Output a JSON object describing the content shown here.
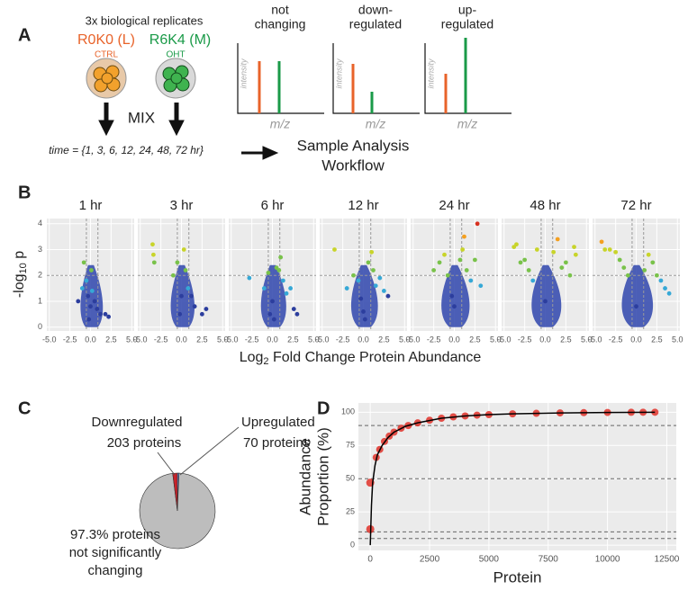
{
  "panel_labels": [
    "A",
    "B",
    "C",
    "D"
  ],
  "panel_a": {
    "replicates": "3x biological replicates",
    "light_label": "R0K0 (L)",
    "light_condition": "CTRL",
    "medium_label": "R6K4 (M)",
    "medium_condition": "OHT",
    "mix": "MIX",
    "time": "time = {1, 3, 6, 12, 24, 48, 72 hr}",
    "workflow": [
      "Sample Analysis",
      "Workflow"
    ],
    "spectra": [
      {
        "title": [
          "not",
          "changing"
        ],
        "y_label": "intensity",
        "x_label": "m/z"
      },
      {
        "title": [
          "down-",
          "regulated"
        ],
        "y_label": "intensity",
        "x_label": "m/z"
      },
      {
        "title": [
          "up-",
          "regulated"
        ],
        "y_label": "intensity",
        "x_label": "m/z"
      }
    ]
  },
  "panel_b": {
    "y_label": [
      "-log",
      "10",
      " p"
    ],
    "x_label": [
      "Log",
      "2",
      " Fold Change Protein Abundance"
    ]
  },
  "chart_data": [
    {
      "type": "scatter",
      "title": "1 hr",
      "x": [
        -1.5,
        -1,
        -0.8,
        -0.5,
        -0.3,
        0,
        0.2,
        0.5,
        0.8,
        1.2,
        1.8,
        2.2,
        -0.2,
        0.1
      ],
      "values": [
        1,
        1.5,
        2.5,
        1.8,
        1.2,
        0.8,
        1.4,
        1,
        0.7,
        0.5,
        0.5,
        0.4,
        0.3,
        2.2
      ],
      "ref_y": 2,
      "ref_x": [
        -0.5,
        0.9
      ],
      "xlim": [
        -5.3,
        5.3
      ],
      "ylim": [
        -0.15,
        4.2
      ],
      "xticks": [
        {
          "value": -5,
          "label": "-5.0"
        },
        {
          "value": -2.5,
          "label": "-2.5"
        },
        {
          "value": 0,
          "label": "0.0"
        },
        {
          "value": 2.5,
          "label": "2.5"
        },
        {
          "value": 5,
          "label": "5.0"
        }
      ],
      "yticks": [
        0,
        1,
        2,
        3,
        4
      ],
      "grid": true
    },
    {
      "type": "scatter",
      "title": "3 hr",
      "x": [
        -3.5,
        -3.4,
        -3.3,
        -1,
        -0.5,
        0,
        0.3,
        0.8,
        1.2,
        1.6,
        2.5,
        3,
        -0.2,
        0.5
      ],
      "values": [
        3.2,
        2.8,
        2.5,
        2,
        2.5,
        1.2,
        3,
        1.5,
        1.2,
        0.8,
        0.5,
        0.7,
        0.5,
        2.2
      ],
      "ref_y": 2,
      "ref_x": [
        -0.5,
        0.9
      ],
      "xlim": [
        -5.3,
        5.3
      ],
      "ylim": [
        -0.15,
        4.2
      ],
      "xticks": [
        {
          "value": -5,
          "label": "-5.0"
        },
        {
          "value": -2.5,
          "label": "-2.5"
        },
        {
          "value": 0,
          "label": "0.0"
        },
        {
          "value": 2.5,
          "label": "2.5"
        },
        {
          "value": 5,
          "label": "5.0"
        }
      ],
      "yticks": [
        0,
        1,
        2,
        3,
        4
      ],
      "grid": true
    },
    {
      "type": "scatter",
      "title": "6 hr",
      "x": [
        -2.8,
        -1,
        -0.5,
        0,
        0.5,
        1,
        1.3,
        1.7,
        2.2,
        2.6,
        3,
        0.2,
        -0.3,
        0.8
      ],
      "values": [
        1.9,
        1.5,
        2.1,
        1,
        2.3,
        2.7,
        1.8,
        1.3,
        1.5,
        0.7,
        0.5,
        0.3,
        0.5,
        2.2
      ],
      "ref_y": 2,
      "ref_x": [
        -0.5,
        0.9
      ],
      "xlim": [
        -5.3,
        5.3
      ],
      "ylim": [
        -0.15,
        4.2
      ],
      "xticks": [
        {
          "value": -5,
          "label": "-5.0"
        },
        {
          "value": -2.5,
          "label": "-2.5"
        },
        {
          "value": 0,
          "label": "0.0"
        },
        {
          "value": 2.5,
          "label": "2.5"
        },
        {
          "value": 5,
          "label": "5.0"
        }
      ],
      "yticks": [
        0,
        1,
        2,
        3,
        4
      ],
      "grid": true
    },
    {
      "type": "scatter",
      "title": "12 hr",
      "x": [
        -3.5,
        -1.2,
        -0.6,
        0,
        0.6,
        1,
        1.5,
        2,
        2.5,
        3,
        1.2,
        0.2,
        -0.3,
        -2
      ],
      "values": [
        3,
        2,
        1.8,
        0.6,
        2.5,
        2.9,
        1.6,
        1.9,
        1.4,
        1.2,
        2.2,
        0.3,
        1.1,
        1.5
      ],
      "ref_y": 2,
      "ref_x": [
        -0.5,
        0.9
      ],
      "xlim": [
        -5.3,
        5.3
      ],
      "ylim": [
        -0.15,
        4.2
      ],
      "xticks": [
        {
          "value": -5,
          "label": "-5.0"
        },
        {
          "value": -2.5,
          "label": "-2.5"
        },
        {
          "value": 0,
          "label": "0.0"
        },
        {
          "value": 2.5,
          "label": "2.5"
        },
        {
          "value": 5,
          "label": "5.0"
        }
      ],
      "yticks": [
        0,
        1,
        2,
        3,
        4
      ],
      "grid": true
    },
    {
      "type": "scatter",
      "title": "24 hr",
      "x": [
        -2.5,
        -1.8,
        -1.2,
        -0.8,
        0,
        0.7,
        1,
        1.5,
        2,
        2.5,
        2.8,
        3.2,
        -0.3,
        1.2
      ],
      "values": [
        2.2,
        2.5,
        2.8,
        2,
        0.8,
        2.6,
        3,
        2.2,
        1.8,
        2.6,
        4,
        1.6,
        1.2,
        3.5
      ],
      "ref_y": 2,
      "ref_x": [
        -0.5,
        0.9
      ],
      "xlim": [
        -5.3,
        5.3
      ],
      "ylim": [
        -0.15,
        4.2
      ],
      "xticks": [
        {
          "value": -5,
          "label": "-5.0"
        },
        {
          "value": -2.5,
          "label": "-2.5"
        },
        {
          "value": 0,
          "label": "0.0"
        },
        {
          "value": 2.5,
          "label": "2.5"
        },
        {
          "value": 5,
          "label": "5.0"
        }
      ],
      "yticks": [
        0,
        1,
        2,
        3,
        4
      ],
      "grid": true
    },
    {
      "type": "scatter",
      "title": "48 hr",
      "x": [
        -3.8,
        -3.5,
        -3,
        -2.5,
        -2,
        -1.5,
        -1,
        0,
        1,
        1.5,
        2,
        2.5,
        3,
        3.5,
        3.7
      ],
      "values": [
        3.1,
        3.2,
        2.5,
        2.6,
        2.2,
        1.8,
        3,
        1,
        2.9,
        3.4,
        2.3,
        2.5,
        2,
        3.1,
        2.8
      ],
      "ref_y": 2,
      "ref_x": [
        -0.5,
        0.9
      ],
      "xlim": [
        -5.3,
        5.3
      ],
      "ylim": [
        -0.15,
        4.2
      ],
      "xticks": [
        {
          "value": -5,
          "label": "-5.0"
        },
        {
          "value": -2.5,
          "label": "-2.5"
        },
        {
          "value": 0,
          "label": "0.0"
        },
        {
          "value": 2.5,
          "label": "2.5"
        },
        {
          "value": 5,
          "label": "5.0"
        }
      ],
      "yticks": [
        0,
        1,
        2,
        3,
        4
      ],
      "grid": true
    },
    {
      "type": "scatter",
      "title": "72 hr",
      "x": [
        -4.2,
        -3.8,
        -3.2,
        -2.5,
        -2,
        -1.5,
        -1,
        0,
        1,
        1.5,
        2,
        2.5,
        3,
        3.5,
        4
      ],
      "values": [
        3.3,
        3,
        3,
        2.9,
        2.6,
        2.3,
        2,
        0.8,
        2.2,
        2.8,
        2.5,
        2,
        1.8,
        1.5,
        1.3
      ],
      "ref_y": 2,
      "ref_x": [
        -0.5,
        0.9
      ],
      "xlim": [
        -5.3,
        5.3
      ],
      "ylim": [
        -0.15,
        4.2
      ],
      "xticks": [
        {
          "value": -5,
          "label": "-5.0"
        },
        {
          "value": -2.5,
          "label": "-2.5"
        },
        {
          "value": 0,
          "label": "0.0"
        },
        {
          "value": 2.5,
          "label": "2.5"
        },
        {
          "value": 5,
          "label": "5.0"
        }
      ],
      "yticks": [
        0,
        1,
        2,
        3,
        4
      ],
      "grid": true
    },
    {
      "type": "pie",
      "categories": [
        "Upregulated",
        null,
        "Downregulated"
      ],
      "values": [
        0.7,
        97.3,
        2.0
      ],
      "colors": [
        "#5b8fd6",
        "#bdbdbd",
        "#c8222a"
      ],
      "annotations": [
        "70 proteins",
        "97.3% proteins",
        "not significantly",
        "changing",
        "203 proteins"
      ]
    },
    {
      "type": "line",
      "x_label": "Protein",
      "y_label": [
        "Abundance",
        "Proportion (%)"
      ],
      "x": [
        0,
        20,
        50,
        100,
        200,
        300,
        500,
        750,
        1000,
        1500,
        2000,
        3000,
        4000,
        5000,
        6000,
        8000,
        10000,
        12000
      ],
      "series": [
        {
          "color": "#000000",
          "values": [
            0,
            12,
            30,
            47,
            60,
            68,
            75,
            81,
            85,
            89.5,
            92,
            95.5,
            97.2,
            98.2,
            98.8,
            99.5,
            99.85,
            100
          ]
        }
      ],
      "points": {
        "color": "#e0271e",
        "x": [
          0,
          0,
          250,
          400,
          600,
          800,
          1000,
          1300,
          1600,
          2000,
          2500,
          3000,
          3500,
          4000,
          4500,
          5000,
          6000,
          7000,
          8000,
          9000,
          10000,
          11000,
          11500,
          12000
        ],
        "values": [
          12,
          47,
          66,
          72,
          78,
          82,
          85,
          88,
          90,
          92,
          94,
          95.5,
          96.5,
          97.2,
          97.8,
          98.2,
          98.8,
          99.2,
          99.5,
          99.7,
          99.85,
          99.95,
          100,
          100
        ]
      },
      "ref_y": [
        5,
        10,
        50,
        90
      ],
      "xlim": [
        -500,
        12900
      ],
      "ylim": [
        -4,
        107
      ],
      "xticks": [
        0,
        2500,
        5000,
        7500,
        10000,
        12500
      ],
      "yticks": [
        0,
        25,
        50,
        75,
        100
      ],
      "grid": true
    }
  ]
}
